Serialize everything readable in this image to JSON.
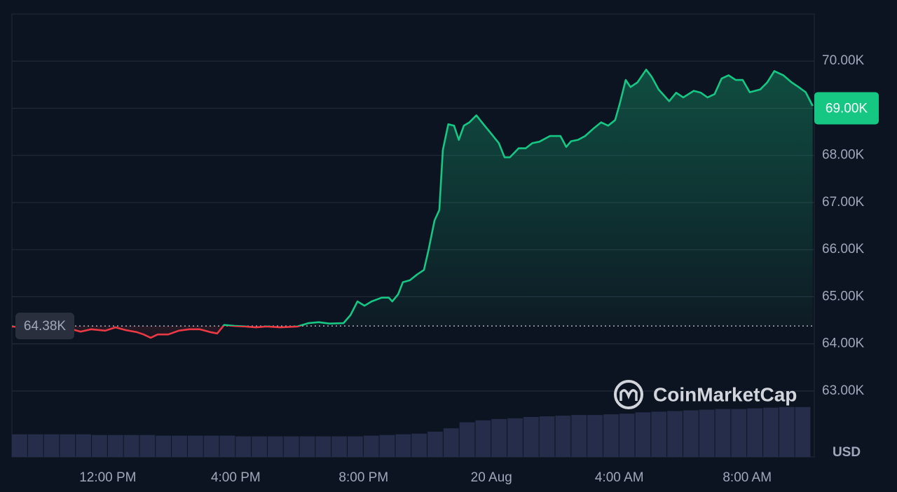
{
  "chart_data": {
    "type": "line",
    "x": [
      9.0,
      9.5,
      9.94,
      10.38,
      10.82,
      11.15,
      11.48,
      11.92,
      12.24,
      12.57,
      12.9,
      13.12,
      13.34,
      13.56,
      13.89,
      14.22,
      14.55,
      14.87,
      15.2,
      15.42,
      15.64,
      15.97,
      16.3,
      16.63,
      16.96,
      17.4,
      17.94,
      18.27,
      18.6,
      18.93,
      19.37,
      19.59,
      19.81,
      20.03,
      20.25,
      20.57,
      20.79,
      20.9,
      21.08,
      21.23,
      21.45,
      21.67,
      21.89,
      22.04,
      22.22,
      22.37,
      22.48,
      22.65,
      22.83,
      22.98,
      23.14,
      23.31,
      23.53,
      23.75,
      23.97,
      24.23,
      24.41,
      24.58,
      24.85,
      25.07,
      25.28,
      25.5,
      25.83,
      26.16,
      26.34,
      26.49,
      26.71,
      26.93,
      27.21,
      27.43,
      27.65,
      27.87,
      28.02,
      28.2,
      28.35,
      28.57,
      28.84,
      29.01,
      29.23,
      29.56,
      29.78,
      30.0,
      30.33,
      30.55,
      30.76,
      30.98,
      31.2,
      31.42,
      31.64,
      31.86,
      32.08,
      32.41,
      32.63,
      32.85,
      33.13,
      33.39,
      33.61,
      33.83,
      34.05
    ],
    "series": [
      {
        "name": "Price",
        "values": [
          64370,
          64340,
          64320,
          64350,
          64320,
          64260,
          64310,
          64280,
          64350,
          64290,
          64250,
          64200,
          64130,
          64200,
          64200,
          64280,
          64310,
          64310,
          64250,
          64220,
          64400,
          64380,
          64370,
          64350,
          64370,
          64350,
          64370,
          64440,
          64460,
          64430,
          64440,
          64610,
          64900,
          64810,
          64900,
          64980,
          64980,
          64900,
          65050,
          65310,
          65350,
          65470,
          65570,
          66020,
          66620,
          66840,
          68110,
          68660,
          68630,
          68330,
          68630,
          68700,
          68850,
          68660,
          68480,
          68260,
          67960,
          67960,
          68150,
          68150,
          68260,
          68290,
          68410,
          68410,
          68180,
          68300,
          68330,
          68410,
          68580,
          68700,
          68630,
          68750,
          69110,
          69600,
          69450,
          69550,
          69820,
          69670,
          69400,
          69150,
          69330,
          69230,
          69370,
          69330,
          69230,
          69300,
          69630,
          69700,
          69600,
          69600,
          69340,
          69400,
          69550,
          69790,
          69700,
          69550,
          69450,
          69340,
          69050
        ]
      }
    ],
    "up_color": "#16c784",
    "down_color": "#ea3943",
    "baseline": {
      "value": 64380,
      "label": "64.38K"
    },
    "last_price": {
      "value": 69000,
      "label": "69.00K"
    },
    "xlim": [
      9,
      34.1
    ],
    "ylim": [
      61600,
      71000
    ],
    "xticks": [
      {
        "value": 12,
        "label": "12:00 PM"
      },
      {
        "value": 16,
        "label": "4:00 PM"
      },
      {
        "value": 20,
        "label": "8:00 PM"
      },
      {
        "value": 24,
        "label": "20 Aug"
      },
      {
        "value": 28,
        "label": "4:00 AM"
      },
      {
        "value": 32,
        "label": "8:00 AM"
      }
    ],
    "yticks": [
      {
        "value": 63000,
        "label": "63.00K"
      },
      {
        "value": 64000,
        "label": "64.00K"
      },
      {
        "value": 65000,
        "label": "65.00K"
      },
      {
        "value": 66000,
        "label": "66.00K"
      },
      {
        "value": 67000,
        "label": "67.00K"
      },
      {
        "value": 68000,
        "label": "68.00K"
      },
      {
        "value": 70000,
        "label": "70.00K"
      }
    ],
    "grid": true,
    "currency": "USD",
    "watermark": "CoinMarketCap",
    "volume": {
      "color": "#252d4a",
      "x": [
        9,
        9.5,
        10,
        10.5,
        11,
        11.5,
        12,
        12.5,
        13,
        13.5,
        14,
        14.5,
        15,
        15.5,
        16,
        16.5,
        17,
        17.5,
        18,
        18.5,
        19,
        19.5,
        20,
        20.5,
        21,
        21.5,
        22,
        22.5,
        23,
        23.5,
        24,
        24.5,
        25,
        25.5,
        26,
        26.5,
        27,
        27.5,
        28,
        28.5,
        29,
        29.5,
        30,
        30.5,
        31,
        31.5,
        32,
        32.5,
        33,
        33.5
      ],
      "values": [
        34,
        34,
        34,
        34,
        34,
        33,
        33,
        33,
        33,
        32,
        32,
        32,
        32,
        32,
        31,
        31,
        31,
        31,
        31,
        31,
        31,
        31,
        32,
        33,
        34,
        35,
        38,
        43,
        52,
        55,
        57,
        58,
        60,
        61,
        62,
        63,
        63,
        64,
        65,
        67,
        68,
        69,
        70,
        71,
        72,
        72,
        73,
        74,
        75,
        75
      ]
    }
  }
}
